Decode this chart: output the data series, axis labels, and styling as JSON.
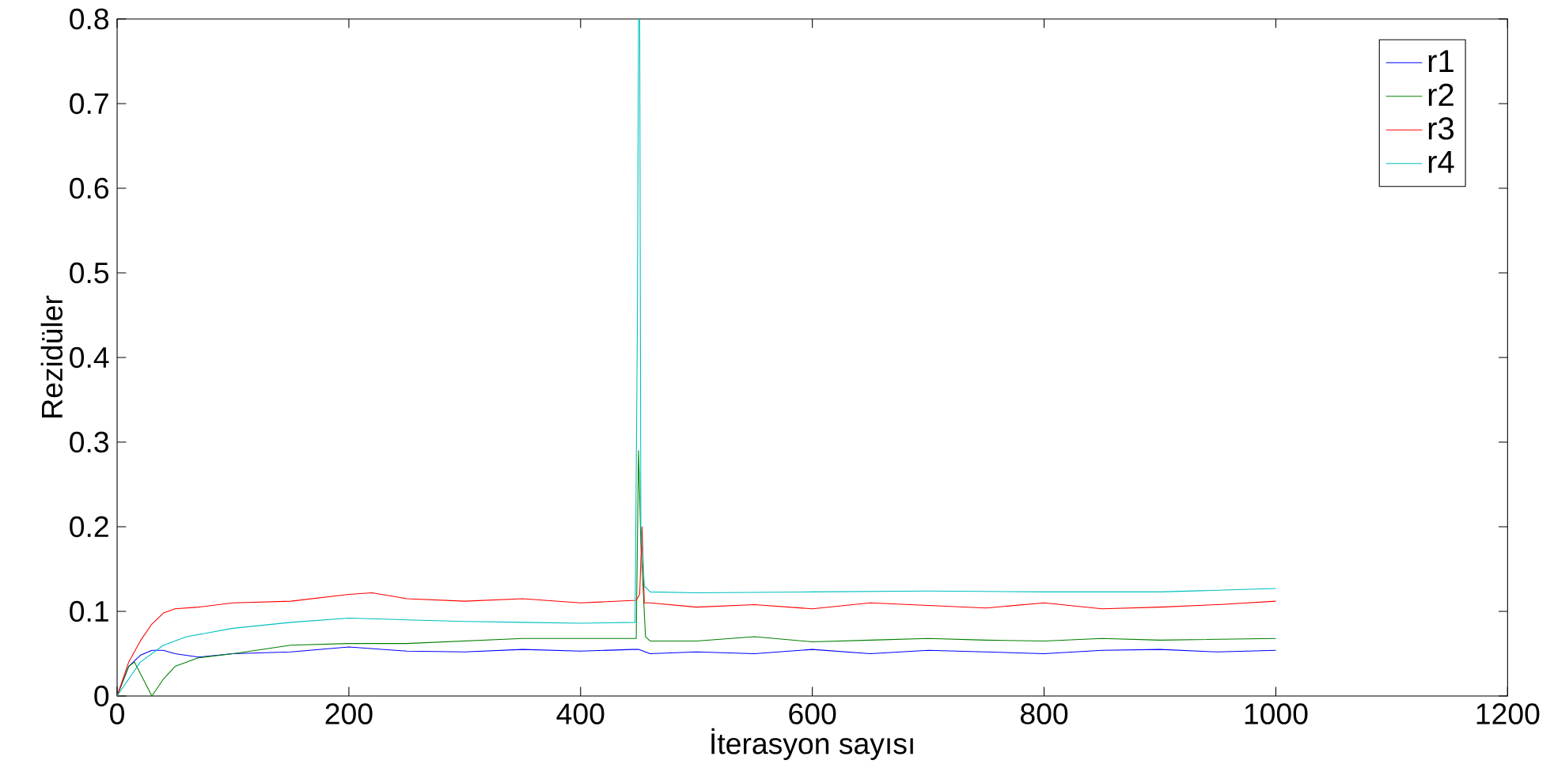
{
  "chart_data": {
    "type": "line",
    "xlabel": "İterasyon sayısı",
    "ylabel": "Rezidüler",
    "xlim": [
      0,
      1200
    ],
    "xticks": [
      0,
      200,
      400,
      600,
      800,
      1000,
      1200
    ],
    "ylim": [
      0,
      0.8
    ],
    "yticks": [
      0,
      0.1,
      0.2,
      0.3,
      0.4,
      0.5,
      0.6,
      0.7,
      0.8
    ],
    "grid": false,
    "legend": "top right",
    "marker": "none",
    "line_style": "solid",
    "series": [
      {
        "name": "r1",
        "color": "#0000ff",
        "x": [
          0,
          10,
          20,
          30,
          40,
          50,
          70,
          100,
          150,
          200,
          250,
          300,
          350,
          400,
          445,
          450,
          460,
          500,
          550,
          600,
          650,
          700,
          750,
          800,
          850,
          900,
          950,
          1000
        ],
        "values": [
          0,
          0.035,
          0.048,
          0.054,
          0.054,
          0.05,
          0.046,
          0.05,
          0.052,
          0.058,
          0.053,
          0.052,
          0.055,
          0.053,
          0.055,
          0.055,
          0.05,
          0.052,
          0.05,
          0.055,
          0.05,
          0.054,
          0.052,
          0.05,
          0.054,
          0.055,
          0.052,
          0.054
        ]
      },
      {
        "name": "r2",
        "color": "#008000",
        "x": [
          0,
          10,
          15,
          30,
          40,
          50,
          70,
          100,
          150,
          200,
          250,
          300,
          350,
          400,
          448,
          450,
          452,
          456,
          460,
          500,
          550,
          600,
          650,
          700,
          750,
          800,
          850,
          900,
          950,
          1000
        ],
        "values": [
          0,
          0.035,
          0.04,
          0,
          0.02,
          0.035,
          0.045,
          0.05,
          0.06,
          0.062,
          0.062,
          0.065,
          0.068,
          0.068,
          0.068,
          0.29,
          0.18,
          0.07,
          0.065,
          0.065,
          0.07,
          0.064,
          0.066,
          0.068,
          0.066,
          0.065,
          0.068,
          0.066,
          0.067,
          0.068
        ]
      },
      {
        "name": "r3",
        "color": "#ff0000",
        "x": [
          0,
          10,
          20,
          30,
          40,
          50,
          70,
          100,
          150,
          200,
          220,
          250,
          300,
          350,
          400,
          448,
          451,
          453,
          455,
          460,
          500,
          550,
          600,
          650,
          700,
          750,
          800,
          850,
          900,
          950,
          1000
        ],
        "values": [
          0,
          0.04,
          0.065,
          0.085,
          0.098,
          0.103,
          0.105,
          0.11,
          0.112,
          0.12,
          0.122,
          0.115,
          0.112,
          0.115,
          0.11,
          0.113,
          0.12,
          0.2,
          0.11,
          0.11,
          0.105,
          0.108,
          0.103,
          0.11,
          0.107,
          0.104,
          0.11,
          0.103,
          0.105,
          0.108,
          0.112
        ]
      },
      {
        "name": "r4",
        "color": "#00bfbf",
        "x": [
          0,
          10,
          20,
          40,
          60,
          100,
          150,
          200,
          250,
          300,
          350,
          400,
          447,
          449,
          450,
          451,
          452,
          455,
          460,
          500,
          600,
          700,
          800,
          900,
          1000
        ],
        "values": [
          0,
          0.02,
          0.04,
          0.06,
          0.07,
          0.08,
          0.087,
          0.092,
          0.09,
          0.088,
          0.087,
          0.086,
          0.087,
          0.44,
          0.8,
          0.8,
          0.2,
          0.13,
          0.123,
          0.122,
          0.123,
          0.124,
          0.123,
          0.123,
          0.127
        ]
      }
    ]
  }
}
